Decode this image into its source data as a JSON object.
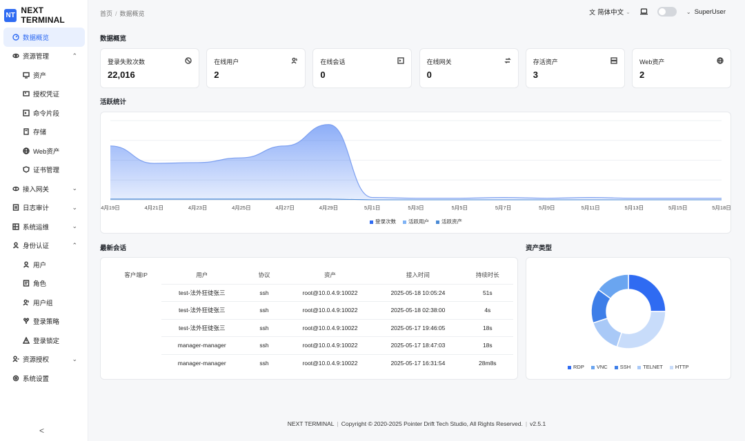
{
  "app": {
    "logo_mark": "NT",
    "name": "NEXT TERMINAL"
  },
  "breadcrumb": {
    "home": "首页",
    "sep": "/",
    "current": "数据概览"
  },
  "topbar": {
    "language": "简体中文",
    "user": "SuperUser"
  },
  "sidebar": {
    "items": [
      {
        "label": "数据概览",
        "icon": "dashboard-icon",
        "active": true
      },
      {
        "label": "资源管理",
        "icon": "resource-icon",
        "chevron": "^"
      },
      {
        "label": "资产",
        "icon": "monitor-icon",
        "sub": true
      },
      {
        "label": "授权凭证",
        "icon": "credential-icon",
        "sub": true
      },
      {
        "label": "命令片段",
        "icon": "terminal-icon",
        "sub": true
      },
      {
        "label": "存储",
        "icon": "storage-icon",
        "sub": true
      },
      {
        "label": "Web资产",
        "icon": "globe-icon",
        "sub": true
      },
      {
        "label": "证书管理",
        "icon": "certificate-icon",
        "sub": true
      },
      {
        "label": "接入网关",
        "icon": "gateway-icon",
        "chevron": "v"
      },
      {
        "label": "日志审计",
        "icon": "log-icon",
        "chevron": "v"
      },
      {
        "label": "系统运维",
        "icon": "ops-icon",
        "chevron": "v"
      },
      {
        "label": "身份认证",
        "icon": "identity-icon",
        "chevron": "^"
      },
      {
        "label": "用户",
        "icon": "user-icon",
        "sub": true
      },
      {
        "label": "角色",
        "icon": "role-icon",
        "sub": true
      },
      {
        "label": "用户组",
        "icon": "group-icon",
        "sub": true
      },
      {
        "label": "登录策略",
        "icon": "policy-icon",
        "sub": true
      },
      {
        "label": "登录锁定",
        "icon": "lock-warning-icon",
        "sub": true
      },
      {
        "label": "资源授权",
        "icon": "authorize-icon",
        "chevron": "v"
      },
      {
        "label": "系统设置",
        "icon": "settings-icon"
      }
    ],
    "collapse": "<"
  },
  "overview": {
    "title": "数据概览",
    "stats": [
      {
        "label": "登录失败次数",
        "value": "22,016",
        "icon": "blocked-icon"
      },
      {
        "label": "在线用户",
        "value": "2",
        "icon": "users-icon"
      },
      {
        "label": "在线会话",
        "value": "0",
        "icon": "terminal-icon"
      },
      {
        "label": "在线网关",
        "value": "0",
        "icon": "switch-icon"
      },
      {
        "label": "存活资产",
        "value": "3",
        "icon": "server-icon"
      },
      {
        "label": "Web资产",
        "value": "2",
        "icon": "globe-icon"
      }
    ]
  },
  "activity": {
    "title": "活跃统计",
    "chart_data": {
      "type": "area",
      "x": [
        "4月19日",
        "4月21日",
        "4月23日",
        "4月25日",
        "4月27日",
        "4月29日",
        "5月1日",
        "5月3日",
        "5月5日",
        "5月7日",
        "5月9日",
        "5月11日",
        "5月13日",
        "5月15日",
        "5月18日"
      ],
      "series": [
        {
          "name": "登录次数",
          "values": [
            68,
            46,
            47,
            53,
            68,
            95,
            3,
            2,
            2,
            3,
            2,
            3,
            2,
            2,
            2
          ]
        },
        {
          "name": "活跃用户",
          "values": [
            1,
            1,
            1,
            1,
            1,
            1,
            0,
            0,
            0,
            0,
            0,
            0,
            0,
            0,
            0
          ]
        },
        {
          "name": "活跃资产",
          "values": [
            1,
            1,
            1,
            1,
            1,
            1,
            0,
            0,
            0,
            0,
            0,
            0,
            0,
            0,
            0
          ]
        }
      ],
      "ylim": [
        0,
        100
      ],
      "grid": true,
      "legend": "bottom",
      "colors": [
        "#2f6bf2",
        "#7fb3f5",
        "#4a8ad4"
      ]
    }
  },
  "sessions": {
    "title": "最新会话",
    "columns": [
      "客户端IP",
      "用户",
      "协议",
      "资产",
      "接入时间",
      "持续时长"
    ],
    "rows": [
      [
        "",
        "test-法外狂徒张三",
        "ssh",
        "root@10.0.4.9:10022",
        "2025-05-18 10:05:24",
        "51s"
      ],
      [
        "",
        "test-法外狂徒张三",
        "ssh",
        "root@10.0.4.9:10022",
        "2025-05-18 02:38:00",
        "4s"
      ],
      [
        "",
        "test-法外狂徒张三",
        "ssh",
        "root@10.0.4.9:10022",
        "2025-05-17 19:46:05",
        "18s"
      ],
      [
        "",
        "manager-manager",
        "ssh",
        "root@10.0.4.9:10022",
        "2025-05-17 18:47:03",
        "18s"
      ],
      [
        "",
        "manager-manager",
        "ssh",
        "root@10.0.4.9:10022",
        "2025-05-17 16:31:54",
        "28m8s"
      ]
    ]
  },
  "asset_types": {
    "title": "资产类型",
    "chart_data": {
      "type": "pie",
      "donut": true,
      "categories": [
        "RDP",
        "VNC",
        "SSH",
        "TELNET",
        "HTTP"
      ],
      "values": [
        25,
        15,
        15,
        15,
        30
      ],
      "colors": [
        "#2f6bf2",
        "#6aa5f0",
        "#3d7ee8",
        "#a9c9f7",
        "#c8dcfa"
      ],
      "legend": "bottom"
    }
  },
  "footer": {
    "product": "NEXT TERMINAL",
    "copyright": "Copyright © 2020-2025 Pointer Drift Tech Studio, All Rights Reserved.",
    "version": "v2.5.1"
  }
}
